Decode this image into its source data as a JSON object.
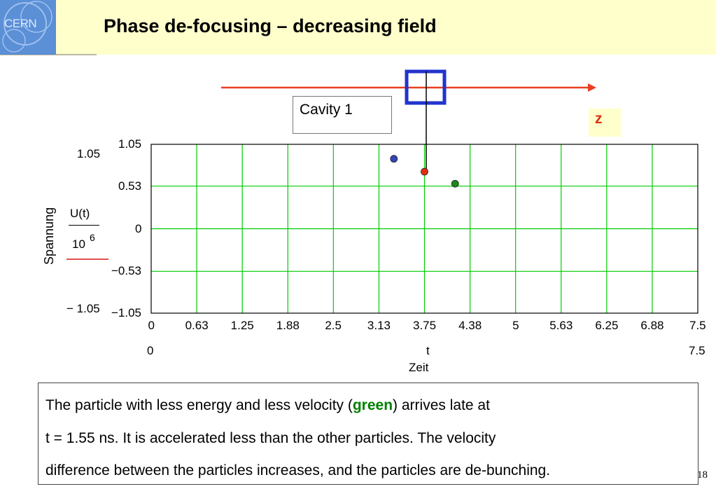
{
  "header": {
    "logo_text": "CERN",
    "title": "Phase de-focusing  – decreasing field"
  },
  "cavity_label": "Cavity 1",
  "z_label": "z",
  "chart_data": {
    "type": "scatter",
    "title": "",
    "xlabel_symbol": "t",
    "xlabel": "Zeit",
    "ylabel": "Spannung",
    "y_fraction": {
      "numerator": "U(t)",
      "denominator": "10",
      "exponent": "6"
    },
    "xlim": [
      0,
      7.5
    ],
    "ylim": [
      -1.05,
      1.05
    ],
    "x_ticks": [
      "0",
      "0.63",
      "1.25",
      "1.88",
      "2.5",
      "3.13",
      "3.75",
      "4.38",
      "5",
      "5.63",
      "6.25",
      "6.88",
      "7.5"
    ],
    "y_ticks": [
      "1.05",
      "0.53",
      "0",
      "−0.53",
      "−1.05"
    ],
    "y_tick_values": [
      1.05,
      0.53,
      0,
      -0.53,
      -1.05
    ],
    "x_range_labels": [
      "0",
      "7.5"
    ],
    "y_range_labels": [
      "1.05",
      "− 1.05"
    ],
    "grid": true,
    "grid_color": "#00cc00",
    "points": [
      {
        "x": 3.33,
        "y": 0.87,
        "color": "#3344bb"
      },
      {
        "x": 3.75,
        "y": 0.71,
        "color": "#e03010"
      },
      {
        "x": 4.17,
        "y": 0.56,
        "color": "#1a8a1a"
      }
    ]
  },
  "description": {
    "line1_pre": "The particle with less energy and less velocity (",
    "line1_green": "green",
    "line1_post": ") arrives late at",
    "line2": "t = 1.55 ns. It is accelerated less than the other particles. The velocity",
    "line3": "difference between the particles increases, and the particles are de-bunching."
  },
  "page_number": "18",
  "colors": {
    "arrow": "#e84020",
    "probe_box": "#2233cc",
    "header_band": "#ffffcc"
  }
}
